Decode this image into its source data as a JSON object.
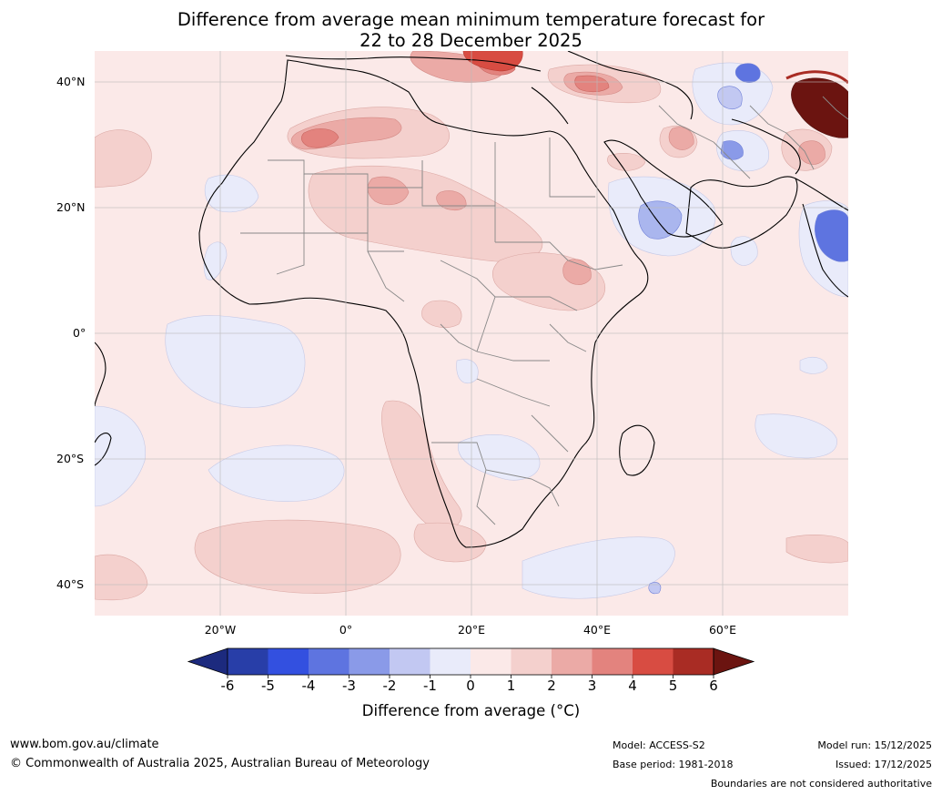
{
  "title": {
    "line1": "Difference from average mean minimum temperature forecast for",
    "line2": "22 to 28 December 2025"
  },
  "map": {
    "region": "Africa",
    "lat_labels": [
      "40°N",
      "20°N",
      "0°",
      "20°S",
      "40°S"
    ],
    "lon_labels": [
      "20°W",
      "0°",
      "20°E",
      "40°E",
      "60°E"
    ],
    "lat_range_deg": [
      -45,
      45
    ],
    "lon_range_deg": [
      -40,
      80
    ]
  },
  "colorbar": {
    "label": "Difference from average ($^\\circ$C)",
    "label_display": "Difference from average (°C)",
    "tick_labels": [
      "-6",
      "-5",
      "-4",
      "-3",
      "-2",
      "-1",
      "0",
      "1",
      "2",
      "3",
      "4",
      "5",
      "6"
    ],
    "colors": [
      "#1c2a7e",
      "#283ea8",
      "#3350e0",
      "#5e74e0",
      "#8a9ae8",
      "#c2c8f2",
      "#e9ebfa",
      "#fbe9e8",
      "#f4d0cd",
      "#ebaaa6",
      "#e3837e",
      "#d84c42",
      "#a92c24",
      "#6b1410"
    ]
  },
  "footer": {
    "website": "www.bom.gov.au/climate",
    "copyright": "© Commonwealth of Australia 2025, Australian Bureau of Meteorology",
    "model": "Model: ACCESS-S2",
    "base_period": "Base period: 1981-2018",
    "model_run": "Model run: 15/12/2025",
    "issued": "Issued: 17/12/2025",
    "disclaimer": "Boundaries are not considered authoritative"
  }
}
